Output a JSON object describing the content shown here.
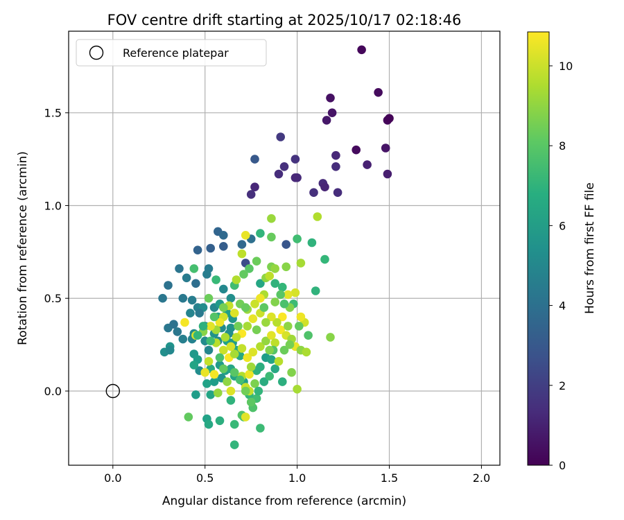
{
  "chart_data": {
    "type": "scatter",
    "title": "FOV centre drift starting at 2025/10/17 02:18:46",
    "xlabel": "Angular distance from reference (arcmin)",
    "ylabel": "Rotation from reference (arcmin)",
    "xlim": [
      -0.24,
      2.1
    ],
    "ylim": [
      -0.4,
      1.94
    ],
    "xticks": [
      "0.0",
      "0.5",
      "1.0",
      "1.5",
      "2.0"
    ],
    "xtick_values": [
      0.0,
      0.5,
      1.0,
      1.5,
      2.0
    ],
    "yticks": [
      "0.0",
      "0.5",
      "1.0",
      "1.5"
    ],
    "ytick_values": [
      0.0,
      0.5,
      1.0,
      1.5
    ],
    "grid": true,
    "legend": {
      "position": "top-left",
      "entries": [
        "Reference platepar"
      ]
    },
    "reference_point": {
      "x": 0.0,
      "y": 0.0
    },
    "colorbar": {
      "label": "Hours from first FF file",
      "colormap": "viridis",
      "range": [
        0,
        10.85
      ],
      "ticks": [
        "0",
        "2",
        "4",
        "6",
        "8",
        "10"
      ],
      "tick_values": [
        0,
        2,
        4,
        6,
        8,
        10
      ]
    },
    "series": [
      {
        "points": [
          [
            1.35,
            1.84,
            0.2
          ],
          [
            1.44,
            1.61,
            0.3
          ],
          [
            1.18,
            1.58,
            0.5
          ],
          [
            1.19,
            1.5,
            0.6
          ],
          [
            1.16,
            1.46,
            0.7
          ],
          [
            1.49,
            1.46,
            0.2
          ],
          [
            1.5,
            1.47,
            0.1
          ],
          [
            0.91,
            1.37,
            1.8
          ],
          [
            1.32,
            1.3,
            0.3
          ],
          [
            1.48,
            1.31,
            0.6
          ],
          [
            1.21,
            1.27,
            1.2
          ],
          [
            1.21,
            1.21,
            1.4
          ],
          [
            1.38,
            1.22,
            1.0
          ],
          [
            0.99,
            1.25,
            1.6
          ],
          [
            0.93,
            1.21,
            1.5
          ],
          [
            1.0,
            1.15,
            1.3
          ],
          [
            0.99,
            1.15,
            1.2
          ],
          [
            0.9,
            1.17,
            1.4
          ],
          [
            1.49,
            1.17,
            0.9
          ],
          [
            1.14,
            1.12,
            1.3
          ],
          [
            1.15,
            1.1,
            1.1
          ],
          [
            0.77,
            1.1,
            1.2
          ],
          [
            0.75,
            1.06,
            1.5
          ],
          [
            1.09,
            1.07,
            1.5
          ],
          [
            1.22,
            1.07,
            1.4
          ],
          [
            0.77,
            1.25,
            3.0
          ],
          [
            0.57,
            0.86,
            3.5
          ],
          [
            0.6,
            0.84,
            3.7
          ],
          [
            0.6,
            0.78,
            3.2
          ],
          [
            0.53,
            0.77,
            3.3
          ],
          [
            0.46,
            0.76,
            3.4
          ],
          [
            0.7,
            0.79,
            3.6
          ],
          [
            0.75,
            0.82,
            4.0
          ],
          [
            0.94,
            0.79,
            2.9
          ],
          [
            0.72,
            0.69,
            2.5
          ],
          [
            0.36,
            0.66,
            4.2
          ],
          [
            0.52,
            0.66,
            4.5
          ],
          [
            0.51,
            0.63,
            4.6
          ],
          [
            0.3,
            0.57,
            4.1
          ],
          [
            0.4,
            0.61,
            4.5
          ],
          [
            0.45,
            0.58,
            3.9
          ],
          [
            0.27,
            0.5,
            4.3
          ],
          [
            0.38,
            0.5,
            4.4
          ],
          [
            0.43,
            0.49,
            4.6
          ],
          [
            0.46,
            0.45,
            4.8
          ],
          [
            0.49,
            0.45,
            5.3
          ],
          [
            0.42,
            0.42,
            4.9
          ],
          [
            0.47,
            0.42,
            4.4
          ],
          [
            0.55,
            0.45,
            5.1
          ],
          [
            0.3,
            0.34,
            4.3
          ],
          [
            0.33,
            0.36,
            4.1
          ],
          [
            0.35,
            0.32,
            4.3
          ],
          [
            0.38,
            0.28,
            4.7
          ],
          [
            0.43,
            0.28,
            4.8
          ],
          [
            0.44,
            0.31,
            5.2
          ],
          [
            0.31,
            0.24,
            5.6
          ],
          [
            0.28,
            0.21,
            5.4
          ],
          [
            0.31,
            0.22,
            5.1
          ],
          [
            0.5,
            0.27,
            5.2
          ],
          [
            0.55,
            0.31,
            5.5
          ],
          [
            0.57,
            0.27,
            5.1
          ],
          [
            0.44,
            0.2,
            5.8
          ],
          [
            0.46,
            0.17,
            6.0
          ],
          [
            0.47,
            0.11,
            5.3
          ],
          [
            0.44,
            0.14,
            6.3
          ],
          [
            0.5,
            0.35,
            5.4
          ],
          [
            0.52,
            0.22,
            5.0
          ],
          [
            0.64,
            0.34,
            5.5
          ],
          [
            0.59,
            0.34,
            5.2
          ],
          [
            0.63,
            0.31,
            5.3
          ],
          [
            0.6,
            0.55,
            5.1
          ],
          [
            0.64,
            0.5,
            5.4
          ],
          [
            0.66,
            0.57,
            5.8
          ],
          [
            0.58,
            0.47,
            5.9
          ],
          [
            0.62,
            0.42,
            6.1
          ],
          [
            0.65,
            0.39,
            5.7
          ],
          [
            0.57,
            0.4,
            6.3
          ],
          [
            0.62,
            0.27,
            6.2
          ],
          [
            0.65,
            0.26,
            5.9
          ],
          [
            0.67,
            0.22,
            6.4
          ],
          [
            0.69,
            0.19,
            6.5
          ],
          [
            0.58,
            0.14,
            5.9
          ],
          [
            0.61,
            0.11,
            6.1
          ],
          [
            0.66,
            0.08,
            6.3
          ],
          [
            0.71,
            0.05,
            6.1
          ],
          [
            0.59,
            0.07,
            5.6
          ],
          [
            0.55,
            0.05,
            6.0
          ],
          [
            0.51,
            0.04,
            6.2
          ],
          [
            0.53,
            0.12,
            6.6
          ],
          [
            0.64,
            0.12,
            6.4
          ],
          [
            0.78,
            0.11,
            6.9
          ],
          [
            0.8,
            0.13,
            6.8
          ],
          [
            0.83,
            0.18,
            6.0
          ],
          [
            0.86,
            0.17,
            6.3
          ],
          [
            0.88,
            0.12,
            6.5
          ],
          [
            0.92,
            0.05,
            6.8
          ],
          [
            0.45,
            -0.02,
            6.0
          ],
          [
            0.53,
            -0.02,
            6.3
          ],
          [
            0.51,
            -0.15,
            6.2
          ],
          [
            0.52,
            -0.18,
            6.5
          ],
          [
            0.58,
            -0.16,
            6.8
          ],
          [
            0.64,
            -0.05,
            7.0
          ],
          [
            0.66,
            -0.18,
            7.3
          ],
          [
            0.66,
            -0.29,
            7.1
          ],
          [
            0.71,
            -0.14,
            7.6
          ],
          [
            0.76,
            -0.09,
            7.8
          ],
          [
            0.78,
            -0.04,
            7.5
          ],
          [
            0.74,
            -0.02,
            7.2
          ],
          [
            0.8,
            -0.2,
            7.4
          ],
          [
            0.41,
            -0.14,
            8.2
          ],
          [
            0.7,
            -0.13,
            7.9
          ],
          [
            0.56,
            0.6,
            7.3
          ],
          [
            0.66,
            0.57,
            7.5
          ],
          [
            0.8,
            0.58,
            6.4
          ],
          [
            0.88,
            0.58,
            7.0
          ],
          [
            0.92,
            0.56,
            7.2
          ],
          [
            0.44,
            0.66,
            7.6
          ],
          [
            0.8,
            0.85,
            7.1
          ],
          [
            1.0,
            0.82,
            7.5
          ],
          [
            1.08,
            0.8,
            7.0
          ],
          [
            1.15,
            0.71,
            7.2
          ],
          [
            1.1,
            0.54,
            7.0
          ],
          [
            0.98,
            0.47,
            7.4
          ],
          [
            0.74,
            0.66,
            8.0
          ],
          [
            0.78,
            0.7,
            8.4
          ],
          [
            0.86,
            0.67,
            8.7
          ],
          [
            0.94,
            0.67,
            8.9
          ],
          [
            0.88,
            0.66,
            9.1
          ],
          [
            0.71,
            0.63,
            8.2
          ],
          [
            0.67,
            0.6,
            9.6
          ],
          [
            0.83,
            0.61,
            9.0
          ],
          [
            0.85,
            0.62,
            9.8
          ],
          [
            0.86,
            0.83,
            8.3
          ],
          [
            0.86,
            0.93,
            9.2
          ],
          [
            1.11,
            0.94,
            9.6
          ],
          [
            0.72,
            0.84,
            10.5
          ],
          [
            1.02,
            0.69,
            9.4
          ],
          [
            0.7,
            0.74,
            9.8
          ],
          [
            0.99,
            0.53,
            10.2
          ],
          [
            0.95,
            0.52,
            10.4
          ],
          [
            0.96,
            0.45,
            8.8
          ],
          [
            0.82,
            0.52,
            9.5
          ],
          [
            0.8,
            0.5,
            10.6
          ],
          [
            0.77,
            0.47,
            10.0
          ],
          [
            0.73,
            0.44,
            9.2
          ],
          [
            0.69,
            0.47,
            8.5
          ],
          [
            0.66,
            0.42,
            10.3
          ],
          [
            0.63,
            0.46,
            9.9
          ],
          [
            0.6,
            0.4,
            10.1
          ],
          [
            0.58,
            0.37,
            10.6
          ],
          [
            0.56,
            0.33,
            9.3
          ],
          [
            0.53,
            0.35,
            10.4
          ],
          [
            0.49,
            0.32,
            8.9
          ],
          [
            0.45,
            0.3,
            10.2
          ],
          [
            0.39,
            0.37,
            10.7
          ],
          [
            0.56,
            0.26,
            9.7
          ],
          [
            0.6,
            0.22,
            10.0
          ],
          [
            0.63,
            0.18,
            10.8
          ],
          [
            0.66,
            0.2,
            9.4
          ],
          [
            0.7,
            0.23,
            9.9
          ],
          [
            0.73,
            0.18,
            10.6
          ],
          [
            0.76,
            0.21,
            10.3
          ],
          [
            0.8,
            0.24,
            9.6
          ],
          [
            0.83,
            0.27,
            9.1
          ],
          [
            0.86,
            0.3,
            10.4
          ],
          [
            0.88,
            0.26,
            9.8
          ],
          [
            0.91,
            0.33,
            10.7
          ],
          [
            0.94,
            0.3,
            10.2
          ],
          [
            0.97,
            0.28,
            9.3
          ],
          [
            0.99,
            0.24,
            10.5
          ],
          [
            1.02,
            0.22,
            9.0
          ],
          [
            1.04,
            0.37,
            10.1
          ],
          [
            1.02,
            0.4,
            10.6
          ],
          [
            1.05,
            0.21,
            9.5
          ],
          [
            1.18,
            0.29,
            8.9
          ],
          [
            0.92,
            0.4,
            10.8
          ],
          [
            0.89,
            0.37,
            9.7
          ],
          [
            0.86,
            0.4,
            10.3
          ],
          [
            0.83,
            0.37,
            9.2
          ],
          [
            0.8,
            0.42,
            10.0
          ],
          [
            0.76,
            0.39,
            10.5
          ],
          [
            0.73,
            0.35,
            9.4
          ],
          [
            0.7,
            0.31,
            10.8
          ],
          [
            0.67,
            0.29,
            9.8
          ],
          [
            0.64,
            0.24,
            10.2
          ],
          [
            0.61,
            0.29,
            9.5
          ],
          [
            0.5,
            0.1,
            10.5
          ],
          [
            0.52,
            0.16,
            9.9
          ],
          [
            0.55,
            0.09,
            10.7
          ],
          [
            0.62,
            0.05,
            9.0
          ],
          [
            0.64,
            0.0,
            10.3
          ],
          [
            0.7,
            0.08,
            9.6
          ],
          [
            0.72,
            0.02,
            10.0
          ],
          [
            0.74,
            0.09,
            10.6
          ],
          [
            0.75,
            0.13,
            9.3
          ],
          [
            0.77,
            0.04,
            8.7
          ],
          [
            0.57,
            -0.01,
            9.1
          ],
          [
            0.9,
            0.16,
            9.7
          ],
          [
            0.97,
            0.1,
            8.8
          ],
          [
            1.0,
            0.01,
            9.4
          ],
          [
            0.72,
            -0.14,
            10.4
          ],
          [
            0.74,
            0.0,
            9.9
          ],
          [
            0.68,
            0.35,
            8.5
          ],
          [
            0.72,
            0.45,
            8.3
          ],
          [
            0.78,
            0.33,
            8.6
          ],
          [
            0.82,
            0.45,
            8.1
          ],
          [
            0.88,
            0.48,
            8.8
          ],
          [
            0.91,
            0.52,
            8.0
          ],
          [
            0.93,
            0.47,
            7.7
          ],
          [
            0.6,
            0.45,
            8.6
          ],
          [
            0.55,
            0.4,
            7.9
          ],
          [
            0.52,
            0.5,
            8.4
          ],
          [
            0.49,
            0.35,
            6.9
          ],
          [
            0.46,
            0.3,
            7.2
          ],
          [
            0.53,
            0.27,
            7.5
          ],
          [
            0.58,
            0.18,
            7.7
          ],
          [
            0.6,
            0.12,
            8.2
          ],
          [
            0.66,
            0.1,
            8.0
          ],
          [
            0.69,
            0.06,
            7.6
          ],
          [
            0.72,
            0.0,
            8.5
          ],
          [
            0.75,
            -0.06,
            8.1
          ],
          [
            0.79,
            0.0,
            7.1
          ],
          [
            0.82,
            0.05,
            6.7
          ],
          [
            0.85,
            0.08,
            7.4
          ],
          [
            0.87,
            0.22,
            7.9
          ],
          [
            0.93,
            0.22,
            8.4
          ],
          [
            0.96,
            0.25,
            8.6
          ],
          [
            1.01,
            0.35,
            8.2
          ],
          [
            1.06,
            0.3,
            7.8
          ],
          [
            0.95,
            0.35,
            9.0
          ],
          [
            0.85,
            0.22,
            8.8
          ]
        ]
      }
    ]
  }
}
